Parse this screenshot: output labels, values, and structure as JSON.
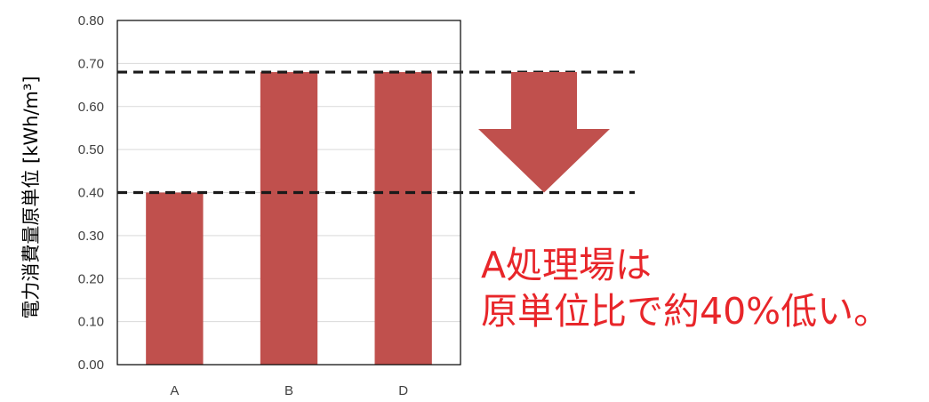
{
  "chart_data": {
    "type": "bar",
    "categories": [
      "A",
      "B",
      "D"
    ],
    "values": [
      0.4,
      0.68,
      0.68
    ],
    "title": "",
    "xlabel": "",
    "ylabel": "電力消費量原単位 [kWh/m³]",
    "ylim": [
      0,
      0.8
    ],
    "yticks": [
      "0.00",
      "0.10",
      "0.20",
      "0.30",
      "0.40",
      "0.50",
      "0.60",
      "0.70",
      "0.80"
    ],
    "grid": true,
    "legend": "none",
    "reference_lines": [
      0.68,
      0.4
    ],
    "bar_color": "#c0504d",
    "arrow_color": "#c0504d"
  },
  "annotation": {
    "line1": "A処理場は",
    "line2": "原単位比で約40%低い。",
    "color": "#e8262a"
  }
}
